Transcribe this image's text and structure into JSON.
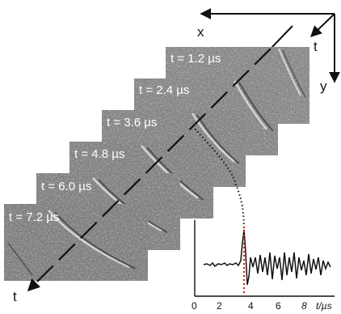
{
  "coordinate_axes": {
    "x_label": "x",
    "y_label": "y",
    "t_label": "t"
  },
  "frames": [
    {
      "label": "t = 1.2 µs"
    },
    {
      "label": "t = 2.4 µs"
    },
    {
      "label": "t = 3.6 µs"
    },
    {
      "label": "t = 4.8 µs"
    },
    {
      "label": "t = 6.0 µs"
    },
    {
      "label": "t = 7.2 µs"
    }
  ],
  "time_axis_label": "t",
  "signal_plot": {
    "x_ticks": [
      "0",
      "2",
      "4",
      "6",
      "8"
    ],
    "x_unit": "t/µs"
  },
  "colors": {
    "frame_gray": "#8a8a8a",
    "marker_red": "#e0201a",
    "ink": "#111111"
  }
}
